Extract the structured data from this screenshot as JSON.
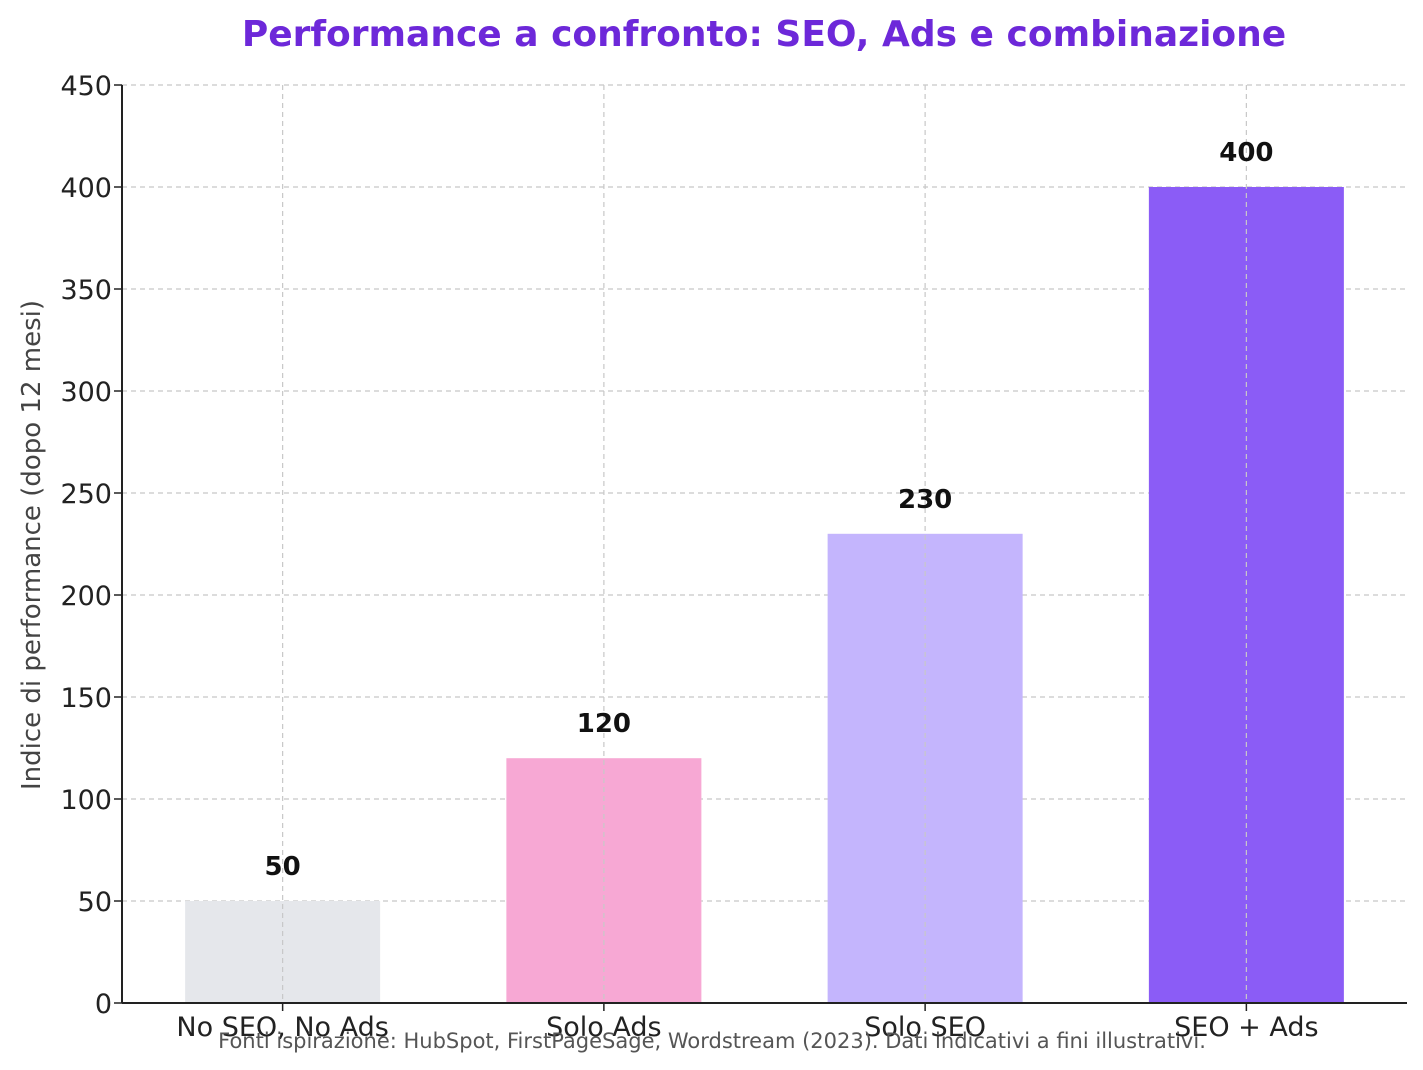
{
  "chart_data": {
    "type": "bar",
    "title": "Performance a confronto: SEO, Ads e combinazione",
    "xlabel": "",
    "ylabel": "Indice di performance (dopo 12 mesi)",
    "categories": [
      "No SEO, No Ads",
      "Solo Ads",
      "Solo SEO",
      "SEO + Ads"
    ],
    "values": [
      50,
      120,
      230,
      400
    ],
    "value_labels": [
      "50",
      "120",
      "230",
      "400"
    ],
    "bar_colors": [
      "#e5e7eb",
      "#f7a8d4",
      "#c4b5fd",
      "#8b5cf6"
    ],
    "ylim": [
      0,
      450
    ],
    "yticks": [
      0,
      50,
      100,
      150,
      200,
      250,
      300,
      350,
      400,
      450
    ],
    "grid": true,
    "legend": "none",
    "title_color": "#6d28d9",
    "footnote": "Fonti ispirazione: HubSpot, FirstPageSage, Wordstream (2023). Dati indicativi a fini illustrativi."
  }
}
